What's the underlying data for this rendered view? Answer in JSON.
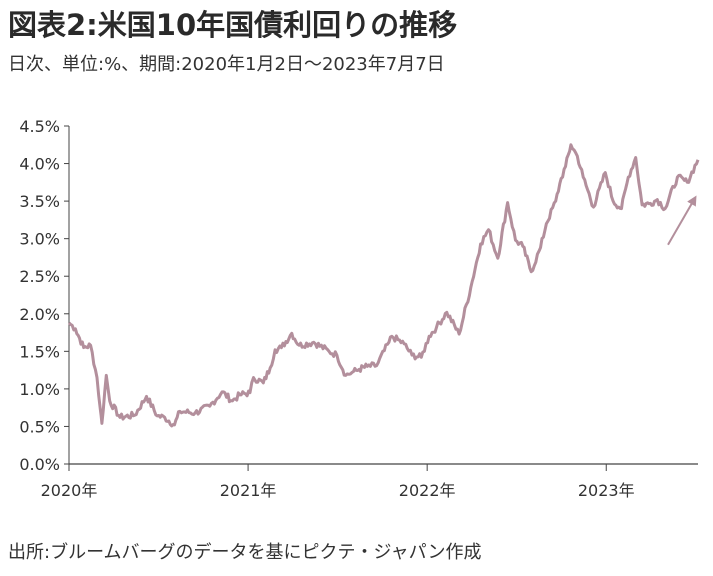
{
  "title": "図表2:米国10年国債利回りの推移",
  "subtitle": "日次、単位:%、期間:2020年1月2日～2023年7月7日",
  "source": "出所:ブルームバーグのデータを基にピクテ・ジャパン作成",
  "colors": {
    "line": "#b38f9c",
    "axis": "#444444",
    "arrow": "#b38f9c"
  },
  "chart_data": {
    "type": "line",
    "title": "図表2:米国10年国債利回りの推移",
    "xlabel": "",
    "ylabel": "",
    "ylim": [
      0,
      4.5
    ],
    "y_ticks": [
      "0.0%",
      "0.5%",
      "1.0%",
      "1.5%",
      "2.0%",
      "2.5%",
      "3.0%",
      "3.5%",
      "4.0%",
      "4.5%"
    ],
    "x_ticks": [
      "2020年",
      "2021年",
      "2022年",
      "2023年"
    ],
    "x_range": [
      "2020-01-02",
      "2023-07-07"
    ],
    "grid": false,
    "annotation": "arrow pointing to latest value (~4.05%)",
    "series": [
      {
        "x": [
          "2020-01-02",
          "2020-01-15",
          "2020-02-01",
          "2020-02-15",
          "2020-02-28",
          "2020-03-06",
          "2020-03-09",
          "2020-03-18",
          "2020-03-25",
          "2020-04-15",
          "2020-05-15",
          "2020-06-08",
          "2020-06-30",
          "2020-07-15",
          "2020-08-04",
          "2020-08-15",
          "2020-09-15",
          "2020-10-15",
          "2020-11-09",
          "2020-11-30",
          "2020-12-15",
          "2021-01-05",
          "2021-01-12",
          "2021-02-01",
          "2021-02-15",
          "2021-02-25",
          "2021-03-10",
          "2021-03-31",
          "2021-04-15",
          "2021-05-15",
          "2021-06-15",
          "2021-07-01",
          "2021-07-19",
          "2021-08-01",
          "2021-08-15",
          "2021-09-01",
          "2021-09-20",
          "2021-10-15",
          "2021-10-21",
          "2021-11-15",
          "2021-12-01",
          "2021-12-20",
          "2022-01-05",
          "2022-01-20",
          "2022-02-10",
          "2022-03-07",
          "2022-03-31",
          "2022-04-20",
          "2022-05-06",
          "2022-05-25",
          "2022-06-14",
          "2022-06-30",
          "2022-07-15",
          "2022-08-01",
          "2022-08-20",
          "2022-09-01",
          "2022-09-20",
          "2022-10-01",
          "2022-10-10",
          "2022-10-21",
          "2022-11-03",
          "2022-11-15",
          "2022-12-06",
          "2022-12-30",
          "2023-01-15",
          "2023-02-01",
          "2023-02-15",
          "2023-03-02",
          "2023-03-15",
          "2023-04-01",
          "2023-04-15",
          "2023-05-01",
          "2023-05-26",
          "2023-06-15",
          "2023-07-07"
        ],
        "values": [
          1.88,
          1.8,
          1.55,
          1.58,
          1.15,
          0.72,
          0.54,
          1.18,
          0.84,
          0.62,
          0.65,
          0.9,
          0.64,
          0.62,
          0.52,
          0.7,
          0.68,
          0.77,
          0.96,
          0.84,
          0.92,
          0.95,
          1.15,
          1.08,
          1.28,
          1.52,
          1.55,
          1.74,
          1.58,
          1.62,
          1.5,
          1.45,
          1.18,
          1.22,
          1.26,
          1.3,
          1.31,
          1.62,
          1.7,
          1.6,
          1.45,
          1.42,
          1.7,
          1.82,
          2.02,
          1.73,
          2.35,
          2.93,
          3.12,
          2.74,
          3.48,
          2.98,
          2.9,
          2.56,
          2.88,
          3.2,
          3.5,
          3.8,
          3.96,
          4.25,
          4.1,
          3.82,
          3.42,
          3.88,
          3.5,
          3.4,
          3.82,
          4.08,
          3.45,
          3.47,
          3.52,
          3.4,
          3.82,
          3.75,
          4.05
        ]
      }
    ]
  }
}
